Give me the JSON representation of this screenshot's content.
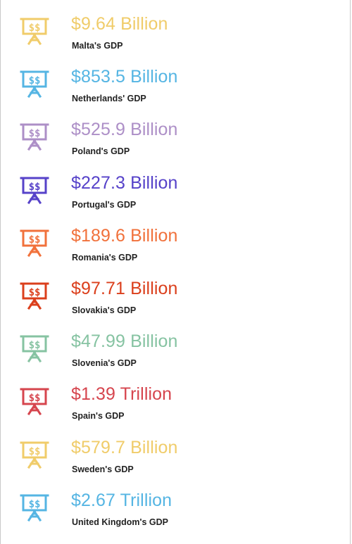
{
  "stats": [
    {
      "value": "$9.64 Billion",
      "label": "Malta's GDP",
      "color": "#f0cc6a",
      "icon": "money-presentation-icon"
    },
    {
      "value": "$853.5 Billion",
      "label": "Netherlands' GDP",
      "color": "#55b5e3",
      "icon": "money-presentation-icon"
    },
    {
      "value": "$525.9 Billion",
      "label": "Poland's GDP",
      "color": "#ad8fc7",
      "icon": "money-presentation-icon"
    },
    {
      "value": "$227.3 Billion",
      "label": "Portugal's GDP",
      "color": "#5642c9",
      "icon": "money-presentation-icon"
    },
    {
      "value": "$189.6 Billion",
      "label": "Romania's GDP",
      "color": "#f1713b",
      "icon": "money-presentation-icon"
    },
    {
      "value": "$97.71 Billion",
      "label": "Slovakia's GDP",
      "color": "#db3f1c",
      "icon": "money-presentation-icon"
    },
    {
      "value": "$47.99 Billion",
      "label": "Slovenia's GDP",
      "color": "#86c3a2",
      "icon": "money-presentation-icon"
    },
    {
      "value": "$1.39 Trillion",
      "label": "Spain's GDP",
      "color": "#d6454e",
      "icon": "money-presentation-icon"
    },
    {
      "value": "$579.7 Billion",
      "label": "Sweden's GDP",
      "color": "#f0cc6a",
      "icon": "money-presentation-icon"
    },
    {
      "value": "$2.67 Trillion",
      "label": "United Kingdom's GDP",
      "color": "#55b5e3",
      "icon": "money-presentation-icon"
    }
  ]
}
